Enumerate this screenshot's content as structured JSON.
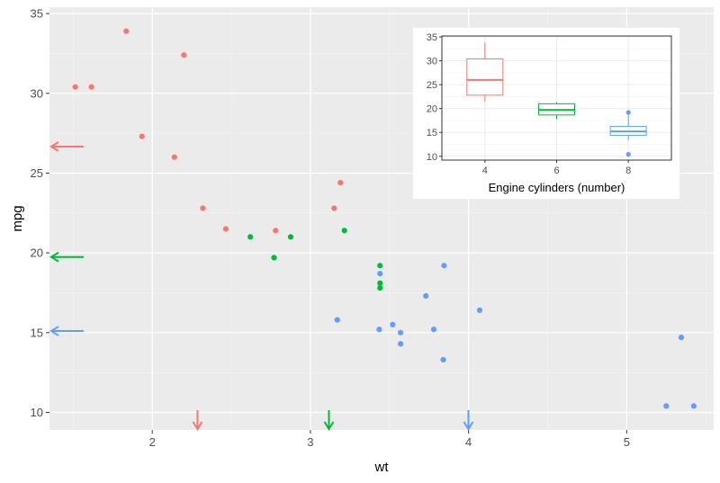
{
  "chart_data": [
    {
      "type": "scatter",
      "xlabel": "wt",
      "ylabel": "mpg",
      "xlim": [
        1.35,
        5.55
      ],
      "ylim": [
        8.9,
        35.4
      ],
      "x_ticks": [
        2,
        3,
        4,
        5
      ],
      "y_ticks": [
        10,
        15,
        20,
        25,
        30,
        35
      ],
      "grid": true,
      "legend": "none",
      "series": [
        {
          "color": "#F8766D",
          "points": [
            [
              2.32,
              22.8
            ],
            [
              3.19,
              24.4
            ],
            [
              3.15,
              22.8
            ],
            [
              2.2,
              32.4
            ],
            [
              1.615,
              30.4
            ],
            [
              1.835,
              33.9
            ],
            [
              2.465,
              21.5
            ],
            [
              1.935,
              27.3
            ],
            [
              2.14,
              26.0
            ],
            [
              1.513,
              30.4
            ],
            [
              2.78,
              21.4
            ]
          ],
          "mean_x": 2.286,
          "mean_y": 26.66
        },
        {
          "color": "#00BA38",
          "points": [
            [
              2.62,
              21.0
            ],
            [
              2.875,
              21.0
            ],
            [
              3.215,
              21.4
            ],
            [
              3.44,
              18.1
            ],
            [
              3.44,
              19.2
            ],
            [
              3.44,
              17.8
            ],
            [
              2.77,
              19.7
            ]
          ],
          "mean_x": 3.117,
          "mean_y": 19.74
        },
        {
          "color": "#619CFF",
          "points": [
            [
              3.44,
              18.7
            ],
            [
              3.57,
              14.3
            ],
            [
              4.07,
              16.4
            ],
            [
              3.73,
              17.3
            ],
            [
              3.78,
              15.2
            ],
            [
              5.25,
              10.4
            ],
            [
              5.424,
              10.4
            ],
            [
              5.345,
              14.7
            ],
            [
              3.52,
              15.5
            ],
            [
              3.435,
              15.2
            ],
            [
              3.84,
              13.3
            ],
            [
              3.845,
              19.2
            ],
            [
              3.17,
              15.8
            ],
            [
              3.57,
              15.0
            ]
          ],
          "mean_x": 3.999,
          "mean_y": 15.1
        }
      ]
    },
    {
      "type": "box",
      "xlabel": "Engine cylinders (number)",
      "ylabel": "",
      "categories": [
        "4",
        "6",
        "8"
      ],
      "x_values": [
        4,
        6,
        8
      ],
      "xlim": [
        2.8,
        9.2
      ],
      "ylim": [
        9.2,
        35.2
      ],
      "y_ticks": [
        10,
        15,
        20,
        25,
        30,
        35
      ],
      "grid": true,
      "boxes": [
        {
          "cyl": 4,
          "color": "#F8766D",
          "min": 21.4,
          "q1": 22.8,
          "median": 26.0,
          "q3": 30.4,
          "max": 33.9,
          "outliers": []
        },
        {
          "cyl": 6,
          "color": "#00BA38",
          "min": 17.8,
          "q1": 18.65,
          "median": 19.7,
          "q3": 21.0,
          "max": 21.4,
          "outliers": []
        },
        {
          "cyl": 8,
          "color": "#619CFF",
          "min": 13.3,
          "q1": 14.4,
          "median": 15.2,
          "q3": 16.25,
          "max": 18.7,
          "outliers": [
            10.4,
            19.2
          ]
        }
      ]
    }
  ]
}
